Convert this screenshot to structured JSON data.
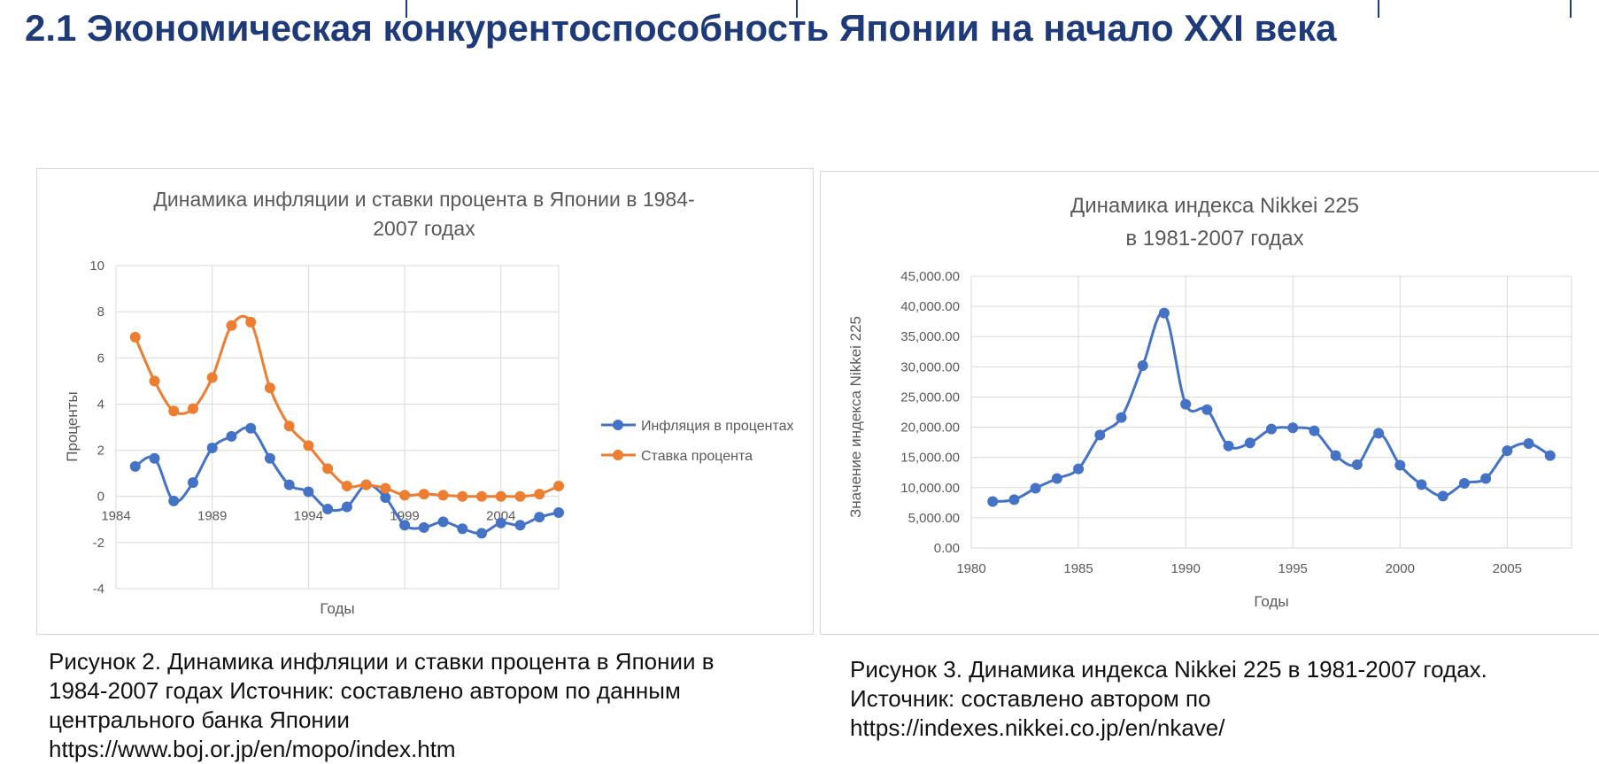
{
  "slide": {
    "title": "2.1 Экономическая конкурентоспособность Японии на начало XXI века"
  },
  "figures": [
    {
      "caption": [
        "Рисунок 2. Динамика инфляции и ставки процента в Японии в",
        "1984-2007 годах Источник: составлено автором по данным",
        "центрального банка Японии",
        "https://www.boj.or.jp/en/mopo/index.htm"
      ]
    },
    {
      "caption": [
        "Рисунок 3. Динамика индекса Nikkei 225 в 1981-2007 годах.",
        "Источник: составлено автором по",
        "https://indexes.nikkei.co.jp/en/nkave/"
      ]
    }
  ],
  "colors": {
    "title": "#1e3a78",
    "series_blue": "#4472c4",
    "series_orange": "#ed7d31",
    "grid": "#d9d9d9",
    "axis_text": "#595959"
  },
  "chart_data": [
    {
      "type": "line",
      "title_lines": [
        "Динамика инфляции и ставки процента в Японии в 1984-",
        "2007 годах"
      ],
      "xlabel": "Годы",
      "ylabel": "Проценты",
      "xlim": [
        1984,
        2007
      ],
      "ylim": [
        -4,
        10
      ],
      "x_ticks": [
        "1984",
        "1989",
        "1994",
        "1999",
        "2004"
      ],
      "y_ticks": [
        "10",
        "8",
        "6",
        "4",
        "2",
        "0",
        "-2",
        "-4"
      ],
      "grid": true,
      "legend_position": "right",
      "x": [
        1985,
        1986,
        1987,
        1988,
        1989,
        1990,
        1991,
        1992,
        1993,
        1994,
        1995,
        1996,
        1997,
        1998,
        1999,
        2000,
        2001,
        2002,
        2003,
        2004,
        2005,
        2006,
        2007
      ],
      "series": [
        {
          "name": "Инфляция в процентах",
          "color": "#4472c4",
          "values": [
            1.3,
            1.65,
            -0.2,
            0.6,
            2.1,
            2.6,
            2.95,
            1.65,
            0.5,
            0.2,
            -0.55,
            -0.45,
            0.5,
            -0.05,
            -1.25,
            -1.35,
            -1.1,
            -1.4,
            -1.6,
            -1.15,
            -1.25,
            -0.9,
            -0.7
          ]
        },
        {
          "name": "Ставка процента",
          "color": "#ed7d31",
          "values": [
            6.9,
            5.0,
            3.7,
            3.8,
            5.15,
            7.4,
            7.55,
            4.7,
            3.05,
            2.2,
            1.2,
            0.45,
            0.5,
            0.35,
            0.05,
            0.1,
            0.05,
            0.0,
            0.0,
            0.0,
            0.0,
            0.1,
            0.45
          ]
        }
      ]
    },
    {
      "type": "line",
      "title_lines": [
        "Динамика индекса Nikkei 225",
        "в 1981-2007 годах"
      ],
      "xlabel": "Годы",
      "ylabel": "Значение индекса Nikkei 225",
      "xlim": [
        1980,
        2008
      ],
      "ylim": [
        0,
        45000
      ],
      "x_ticks": [
        "1980",
        "1985",
        "1990",
        "1995",
        "2000",
        "2005"
      ],
      "y_ticks": [
        "45,000.00",
        "40,000.00",
        "35,000.00",
        "30,000.00",
        "25,000.00",
        "20,000.00",
        "15,000.00",
        "10,000.00",
        "5,000.00",
        "0.00"
      ],
      "grid": true,
      "x": [
        1981,
        1982,
        1983,
        1984,
        1985,
        1986,
        1987,
        1988,
        1989,
        1990,
        1991,
        1992,
        1993,
        1994,
        1995,
        1996,
        1997,
        1998,
        1999,
        2000,
        2001,
        2002,
        2003,
        2004,
        2005,
        2006,
        2007
      ],
      "series": [
        {
          "color": "#4472c4",
          "values": [
            7700,
            8000,
            9900,
            11500,
            13100,
            18700,
            21600,
            30200,
            38900,
            23800,
            22900,
            16900,
            17400,
            19700,
            19900,
            19400,
            15300,
            13800,
            19000,
            13700,
            10500,
            8600,
            10700,
            11500,
            16100,
            17300,
            15300
          ]
        }
      ]
    }
  ]
}
